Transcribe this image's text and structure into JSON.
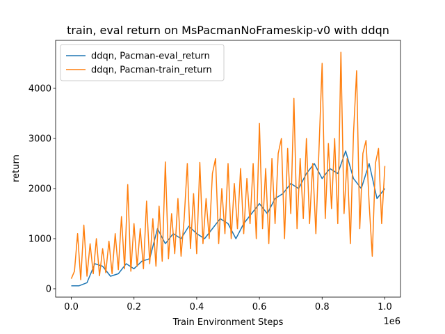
{
  "chart_data": {
    "type": "line",
    "title": "train, eval return on MsPacmanNoFrameskip-v0 with ddqn",
    "x_label": "Train Environment Steps",
    "y_label": "return",
    "x_offset_label": "1e6",
    "xlim": [
      -50000,
      1050000
    ],
    "xticks": [
      {
        "value": 0,
        "label": "0.0"
      },
      {
        "value": 200000,
        "label": "0.2"
      },
      {
        "value": 400000,
        "label": "0.4"
      },
      {
        "value": 600000,
        "label": "0.6"
      },
      {
        "value": 800000,
        "label": "0.8"
      },
      {
        "value": 1000000,
        "label": "1.0"
      }
    ],
    "ylim": [
      -167,
      4958
    ],
    "yticks": [
      0,
      1000,
      2000,
      3000,
      4000
    ],
    "legend": "upper left",
    "series": [
      {
        "name": "ddqn, Pacman-eval_return",
        "color": "#1f77b4",
        "x": [
          0,
          25000,
          50000,
          75000,
          100000,
          125000,
          150000,
          175000,
          200000,
          225000,
          250000,
          275000,
          300000,
          325000,
          350000,
          375000,
          400000,
          425000,
          450000,
          475000,
          500000,
          525000,
          550000,
          575000,
          600000,
          625000,
          650000,
          675000,
          700000,
          725000,
          750000,
          775000,
          800000,
          825000,
          850000,
          875000,
          900000,
          925000,
          950000,
          975000,
          1000000
        ],
        "values": [
          60,
          60,
          120,
          500,
          450,
          250,
          300,
          500,
          400,
          550,
          600,
          1200,
          900,
          1100,
          1000,
          1250,
          1100,
          1000,
          1200,
          1400,
          1300,
          1000,
          1300,
          1500,
          1700,
          1500,
          1800,
          1900,
          2100,
          2000,
          2300,
          2500,
          2200,
          2400,
          2300,
          2750,
          2200,
          2000,
          2500,
          1800,
          2000
        ]
      },
      {
        "name": "ddqn, Pacman-train_return",
        "color": "#ff7f0e",
        "x": [
          0,
          10000,
          20000,
          30000,
          40000,
          50000,
          60000,
          70000,
          80000,
          90000,
          100000,
          110000,
          120000,
          130000,
          140000,
          150000,
          160000,
          170000,
          180000,
          190000,
          200000,
          210000,
          220000,
          230000,
          240000,
          250000,
          260000,
          270000,
          280000,
          290000,
          300000,
          310000,
          320000,
          330000,
          340000,
          350000,
          360000,
          370000,
          380000,
          390000,
          400000,
          410000,
          420000,
          430000,
          440000,
          450000,
          460000,
          470000,
          480000,
          490000,
          500000,
          510000,
          520000,
          530000,
          540000,
          550000,
          560000,
          570000,
          580000,
          590000,
          600000,
          610000,
          620000,
          630000,
          640000,
          650000,
          660000,
          670000,
          680000,
          690000,
          700000,
          710000,
          720000,
          730000,
          740000,
          750000,
          760000,
          770000,
          780000,
          790000,
          800000,
          810000,
          820000,
          830000,
          840000,
          850000,
          860000,
          870000,
          880000,
          890000,
          900000,
          910000,
          920000,
          930000,
          940000,
          950000,
          960000,
          970000,
          980000,
          990000,
          1000000
        ],
        "values": [
          200,
          350,
          1100,
          180,
          1270,
          250,
          900,
          300,
          1000,
          260,
          800,
          320,
          950,
          300,
          1100,
          380,
          1440,
          400,
          2080,
          350,
          1300,
          450,
          1200,
          400,
          1750,
          500,
          1400,
          450,
          1650,
          550,
          2530,
          600,
          1500,
          700,
          1800,
          650,
          1400,
          2500,
          800,
          1900,
          700,
          2520,
          900,
          1800,
          1000,
          2300,
          2600,
          900,
          2000,
          1100,
          2500,
          1000,
          2100,
          1200,
          2400,
          1100,
          2200,
          1300,
          2500,
          1000,
          3300,
          1200,
          2400,
          900,
          2600,
          1300,
          2700,
          3000,
          1000,
          2800,
          1500,
          3800,
          1200,
          2600,
          1400,
          3000,
          1300,
          2500,
          1100,
          2800,
          4500,
          1400,
          2900,
          1600,
          3000,
          1300,
          4720,
          1500,
          2600,
          900,
          3100,
          4350,
          1200,
          2700,
          2960,
          1700,
          650,
          2500,
          2800,
          1300,
          2450
        ]
      }
    ]
  }
}
